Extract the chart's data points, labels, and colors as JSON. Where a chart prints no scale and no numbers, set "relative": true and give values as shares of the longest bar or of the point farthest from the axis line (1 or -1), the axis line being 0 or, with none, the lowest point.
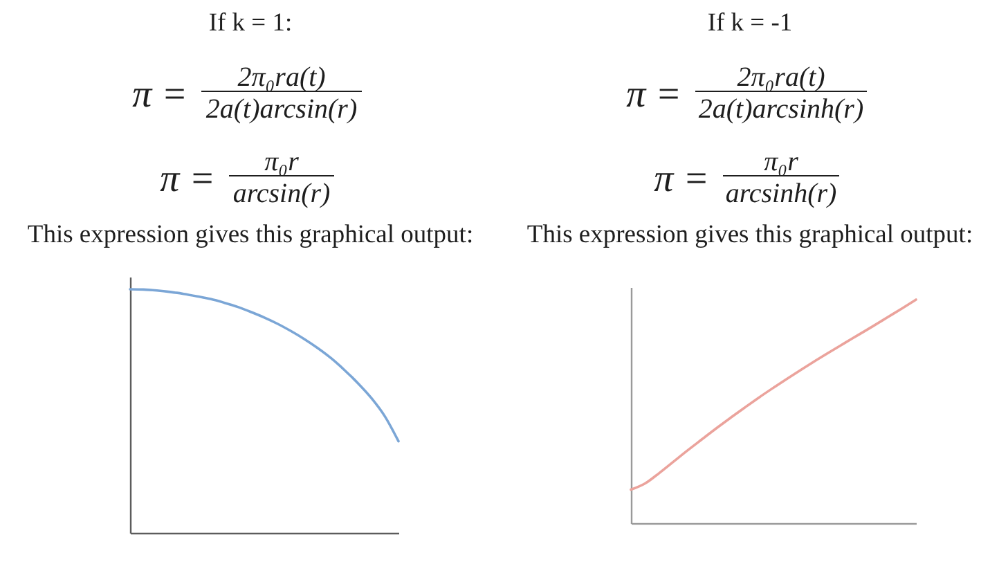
{
  "chart_data": [
    {
      "type": "line",
      "title": "If k = 1:",
      "annotations": [
        "π =",
        "2π₀ra(t)",
        "2a(t)arcsin(r)",
        "π =",
        "π₀r",
        "arcsin(r)",
        "This expression gives this graphical output:"
      ],
      "relative": true,
      "line_style": "solid",
      "categories": [
        null,
        null,
        null,
        null,
        null,
        null,
        null,
        null,
        null,
        null,
        null,
        null,
        null,
        null,
        null,
        null,
        null,
        null,
        null,
        null,
        null
      ],
      "color": "#7ba6d6",
      "values": [
        1.0,
        0.999,
        0.995,
        0.989,
        0.981,
        0.971,
        0.96,
        0.945,
        0.928,
        0.907,
        0.884,
        0.858,
        0.828,
        0.795,
        0.758,
        0.716,
        0.667,
        0.613,
        0.552,
        0.477,
        0.376
      ]
    },
    {
      "type": "line",
      "title": "If k = -1",
      "annotations": [
        "π =",
        "2π₀ra(t)",
        "2a(t)arcsinh(r)",
        "π =",
        "π₀r",
        "arcsinh(r)",
        "This expression gives this graphical output:"
      ],
      "relative": true,
      "line_style": "solid",
      "categories": [
        null,
        null,
        null,
        null,
        null,
        null,
        null,
        null,
        null,
        null,
        null,
        null,
        null,
        null,
        null,
        null,
        null,
        null,
        null,
        null,
        null
      ],
      "color": "#eba39c",
      "values": [
        0.15,
        0.178,
        0.225,
        0.276,
        0.327,
        0.376,
        0.425,
        0.472,
        0.518,
        0.563,
        0.606,
        0.648,
        0.689,
        0.729,
        0.768,
        0.806,
        0.844,
        0.882,
        0.921,
        0.96,
        1.0
      ]
    }
  ]
}
